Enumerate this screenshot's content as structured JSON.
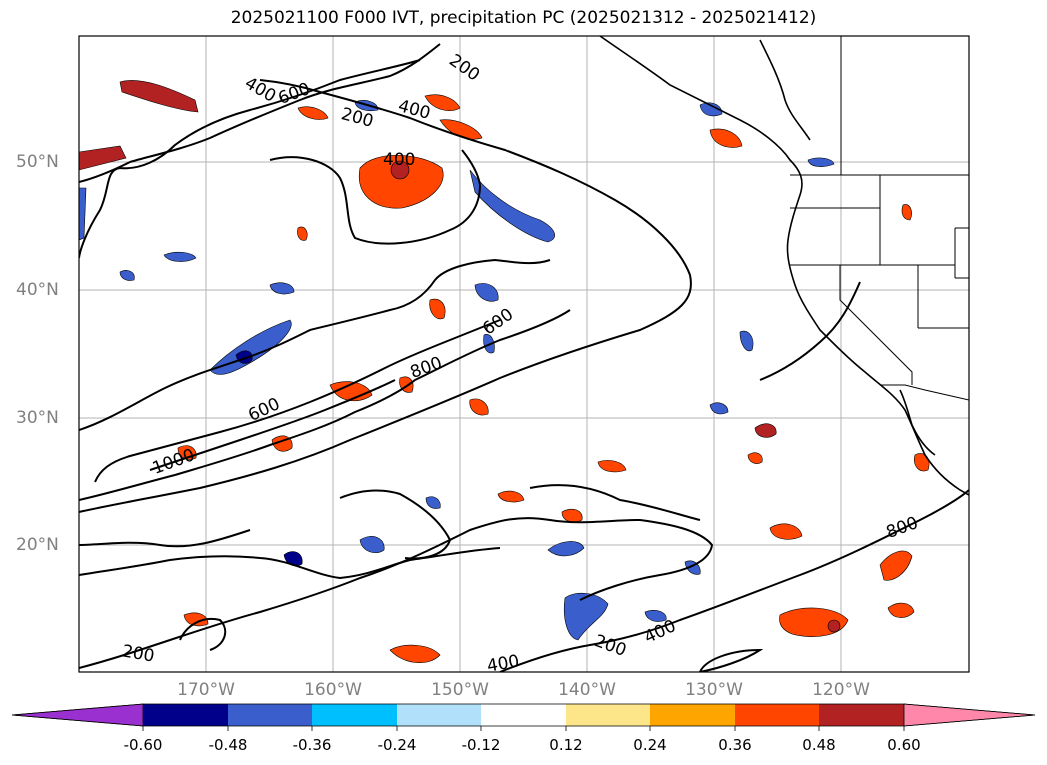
{
  "title": "2025021100 F000 IVT, precipitation PC (2025021312 - 2025021412)",
  "lat_labels": [
    "50°N",
    "40°N",
    "30°N",
    "20°N"
  ],
  "lon_labels": [
    "170°W",
    "160°W",
    "150°W",
    "140°W",
    "130°W",
    "120°W"
  ],
  "contour_labels": [
    "200",
    "400",
    "600",
    "200",
    "400",
    "400",
    "600",
    "800",
    "600",
    "1000",
    "800",
    "200",
    "200",
    "400",
    "400",
    "400"
  ],
  "colorbar": {
    "ticks": [
      "-0.60",
      "-0.48",
      "-0.36",
      "-0.24",
      "-0.12",
      "0.12",
      "0.24",
      "0.36",
      "0.48",
      "0.60"
    ],
    "colors": [
      "#9b30d0",
      "#00008b",
      "#3a5fcd",
      "#00bfff",
      "#b0e0fa",
      "#ffffff",
      "#fde68a",
      "#ffa500",
      "#ff4500",
      "#b22222",
      "#ff88aa"
    ]
  }
}
